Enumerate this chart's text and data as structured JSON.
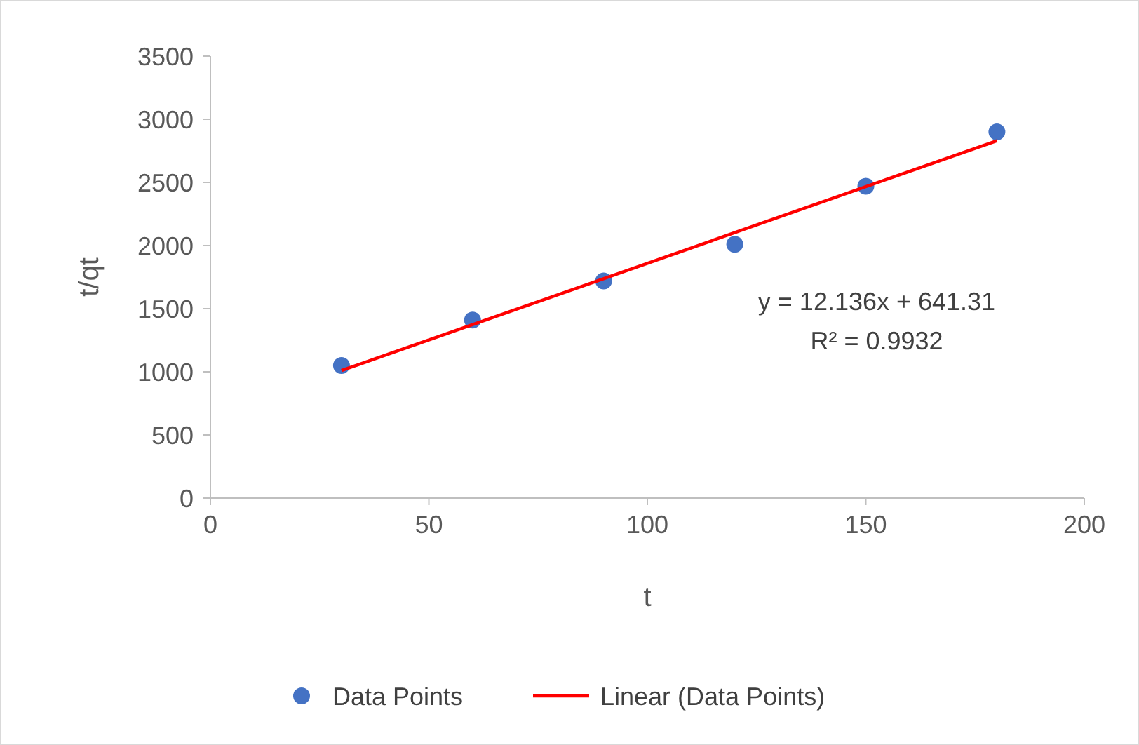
{
  "chart_data": {
    "type": "scatter",
    "xlabel": "t",
    "ylabel": "t/qt",
    "xlim": [
      0,
      200
    ],
    "xticks": [
      0,
      50,
      100,
      150,
      200
    ],
    "ylim": [
      0,
      3500
    ],
    "yticks": [
      0,
      500,
      1000,
      1500,
      2000,
      2500,
      3000,
      3500
    ],
    "grid": false,
    "legend": "bottom",
    "annotations": [
      "y = 12.136x + 641.31",
      "R² = 0.9932"
    ],
    "series": [
      {
        "name": "Data Points",
        "type": "scatter",
        "color": "#4472c4",
        "marker": "circle",
        "x": [
          30,
          60,
          90,
          120,
          150,
          180
        ],
        "values": [
          1050,
          1410,
          1720,
          2010,
          2470,
          2900
        ]
      },
      {
        "name": "Linear (Data Points)",
        "type": "line",
        "color": "#ff0000",
        "marker": "none",
        "line_style": "solid",
        "x": [
          30,
          180
        ],
        "values": [
          1010,
          2830
        ]
      }
    ]
  }
}
